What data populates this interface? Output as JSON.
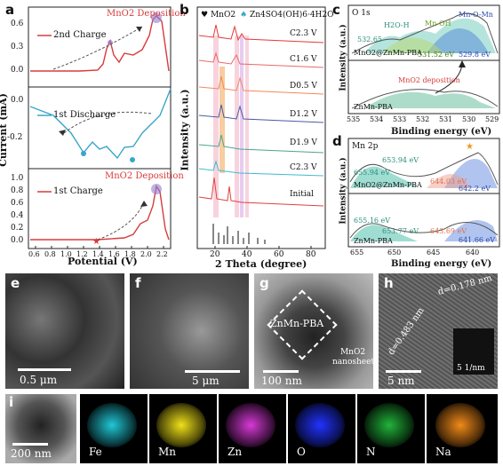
{
  "panel_a": {
    "letter": "a",
    "ylabel": "Current (mA)",
    "xlabel": "Potential (V)",
    "xticks": [
      "0.6",
      "0.8",
      "1.0",
      "1.2",
      "1.4",
      "1.6",
      "1.8",
      "2.0",
      "2.2"
    ],
    "top": {
      "legend": "2nd Charge",
      "title": "MnO2 Deposition",
      "yticks": [
        "0.6",
        "0.3",
        "0.0"
      ]
    },
    "mid": {
      "legend": "1st Discharge",
      "yticks": [
        "0.0",
        "-0.2"
      ]
    },
    "bot": {
      "legend": "1st Charge",
      "title": "MnO2 Deposition",
      "yticks": [
        "1.0",
        "0.8",
        "0.6",
        "0.4",
        "0.2",
        "0.0"
      ]
    },
    "colors": {
      "charge": "#d83b3b",
      "discharge": "#3aa6c8",
      "marker": "#8e7fd6"
    }
  },
  "panel_b": {
    "letter": "b",
    "ylabel": "Intensity (a.u.)",
    "xlabel": "2 Theta (degree)",
    "xticks": [
      "20",
      "40",
      "60",
      "80"
    ],
    "legend_mno2": "MnO2",
    "legend_zn": "Zn4SO4(OH)6·4H2O",
    "labels": [
      "C2.3 V",
      "C1.6 V",
      "D0.5 V",
      "D1.2 V",
      "D1.9 V",
      "C2.3 V",
      "Initial"
    ],
    "colors": [
      "#e53935",
      "#e66a6a",
      "#f08a5d",
      "#4a5aa8",
      "#4aa58e",
      "#3fbad2",
      "#e04040"
    ]
  },
  "panel_c": {
    "letter": "c",
    "title": "O 1s",
    "ylabel": "Intensity (a.u.)",
    "xlabel": "Binding energy (eV)",
    "xticks": [
      "535",
      "534",
      "533",
      "532",
      "531",
      "530",
      "529"
    ],
    "peaks": [
      "H2O-H",
      "Mn-OH",
      "Mn-O-Mn"
    ],
    "values_top": [
      "532.65",
      "531.52 eV",
      "529.8 eV"
    ],
    "sample_top": "MnO2@ZnMn-PBA",
    "sample_bot": "ZnMn-PBA",
    "arrow_note": "MnO2 deposition"
  },
  "panel_d": {
    "letter": "d",
    "title": "Mn 2p",
    "ylabel": "Intensity (a.u.)",
    "xlabel": "Binding energy (eV)",
    "xticks": [
      "655",
      "650",
      "645",
      "640"
    ],
    "top_vals": [
      "653.94 eV",
      "655.94 eV",
      "644.03 eV",
      "642.2 eV"
    ],
    "bot_vals": [
      "655.16 eV",
      "653.77 eV",
      "643.69 eV",
      "641.66 eV"
    ],
    "sample_top": "MnO2@ZnMn-PBA",
    "sample_bot": "ZnMn-PBA"
  },
  "micro": {
    "e": {
      "letter": "e",
      "scale": "0.5 μm"
    },
    "f": {
      "letter": "f",
      "scale": "5 μm"
    },
    "g": {
      "letter": "g",
      "scale": "100 nm",
      "box_label": "ZnMn-PBA",
      "arrow_label": "MnO2 nanosheets"
    },
    "h": {
      "letter": "h",
      "scale": "5 nm",
      "d1": "d=0.178 nm",
      "d2": "d=0.483 nm",
      "inset_scale": "5 1/nm"
    }
  },
  "panel_i": {
    "letter": "i",
    "scale": "200 nm",
    "maps": [
      {
        "label": "Fe",
        "color": "#21c8d6"
      },
      {
        "label": "Mn",
        "color": "#f0e11a"
      },
      {
        "label": "Zn",
        "color": "#d63ad6"
      },
      {
        "label": "O",
        "color": "#2233ff"
      },
      {
        "label": "N",
        "color": "#22b33a"
      },
      {
        "label": "Na",
        "color": "#f08a1a"
      }
    ]
  }
}
